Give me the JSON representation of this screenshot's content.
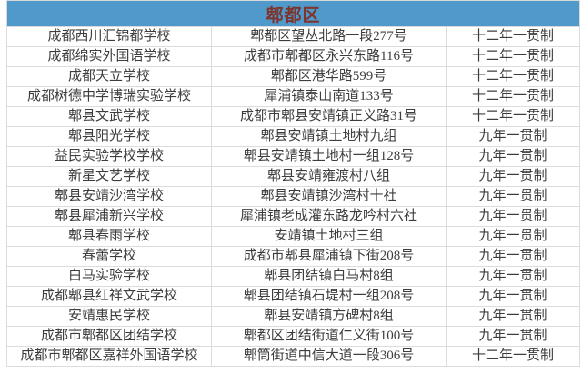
{
  "header": {
    "title": "郫都区"
  },
  "colors": {
    "header_bg": "#4f9acb",
    "header_text": "#7d352e",
    "body_text": "#3d3d3d",
    "border": "#dcdcdc"
  },
  "rows": [
    {
      "school": "成都西川汇锦都学校",
      "address": "郫都区望丛北路一段277号",
      "type": "十二年一贯制"
    },
    {
      "school": "成都绵实外国语学校",
      "address": "成都市郫都区永兴东路116号",
      "type": "十二年一贯制"
    },
    {
      "school": "成都天立学校",
      "address": "郫都区港华路599号",
      "type": "十二年一贯制"
    },
    {
      "school": "成都树德中学博瑞实验学校",
      "address": "犀浦镇泰山南道133号",
      "type": "十二年一贯制"
    },
    {
      "school": "郫县文武学校",
      "address": "成都市郫县安靖镇正义路31号",
      "type": "十二年一贯制"
    },
    {
      "school": "郫县阳光学校",
      "address": "郫县安靖镇土地村九组",
      "type": "九年一贯制"
    },
    {
      "school": "益民实验学校学校",
      "address": "郫县安靖镇土地村一组128号",
      "type": "九年一贯制"
    },
    {
      "school": "新星文艺学校",
      "address": "郫县安靖雍渡村八组",
      "type": "九年一贯制"
    },
    {
      "school": "郫县安靖沙湾学校",
      "address": "郫县安靖镇沙湾村十社",
      "type": "九年一贯制"
    },
    {
      "school": "郫县犀浦新兴学校",
      "address": "犀浦镇老成灌东路龙吟村六社",
      "type": "九年一贯制"
    },
    {
      "school": "郫县春雨学校",
      "address": "安靖镇土地村三组",
      "type": "九年一贯制"
    },
    {
      "school": "春蕾学校",
      "address": "成都市郫县犀浦镇下街208号",
      "type": "九年一贯制"
    },
    {
      "school": "白马实验学校",
      "address": "郫县团结镇白马村8组",
      "type": "九年一贯制"
    },
    {
      "school": "成都郫县红祥文武学校",
      "address": "郫县团结镇石堤村一组208号",
      "type": "九年一贯制"
    },
    {
      "school": "安靖惠民学校",
      "address": "郫县安靖镇方碑村8组",
      "type": "九年一贯制"
    },
    {
      "school": "成都市郫都区团结学校",
      "address": "郫都区团结街道仁义街100号",
      "type": "九年一贯制"
    },
    {
      "school": "成都市郫都区嘉祥外国语学校",
      "address": "郫筒街道中信大道一段306号",
      "type": "十二年一贯制"
    }
  ]
}
